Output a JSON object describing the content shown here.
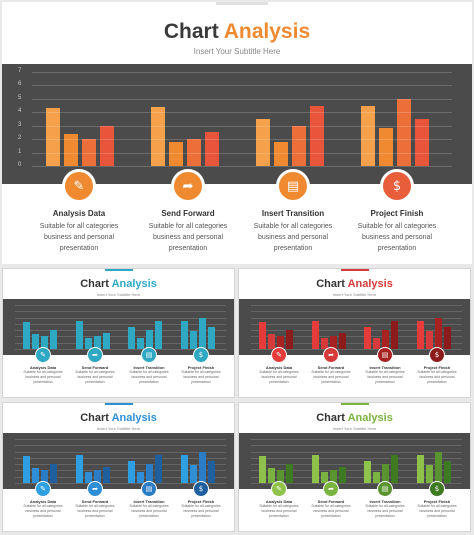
{
  "main": {
    "title_word1": "Chart",
    "title_word2": "Analysis",
    "subtitle": "Insert Your Subtitle Here",
    "accent": "#f08a30",
    "ytick_labels": [
      "7",
      "6",
      "5",
      "4",
      "3",
      "2",
      "1",
      "0"
    ],
    "features": [
      {
        "name": "Analysis Data",
        "desc": "Suitable for all categories business and personal presentation",
        "icon": "pencil-note-icon",
        "glyph": "✎",
        "color": "#f08a30"
      },
      {
        "name": "Send Forward",
        "desc": "Suitable for all categories business and personal presentation",
        "icon": "share-arrow-icon",
        "glyph": "➦",
        "color": "#f08a30"
      },
      {
        "name": "Insert Transition",
        "desc": "Suitable for all categories business and personal presentation",
        "icon": "slides-icon",
        "glyph": "▤",
        "color": "#f08a30"
      },
      {
        "name": "Project Finish",
        "desc": "Suitable for all categories business and personal presentation",
        "icon": "money-bag-icon",
        "glyph": "$",
        "color": "#e85d3a"
      }
    ]
  },
  "thumbnails": [
    {
      "title_word1": "Chart",
      "title_word2": "Analysis",
      "subtitle": "Insert Your Subtitle Here",
      "accent": "#2fa8c4",
      "palette": [
        "#2fa8c4",
        "#2fa8c4",
        "#2fa8c4",
        "#2fa8c4"
      ],
      "features": [
        "Analysis Data",
        "Send Forward",
        "Insert Transition",
        "Project Finish"
      ],
      "desc": "Suitable for all categories business and personal presentation"
    },
    {
      "title_word1": "Chart",
      "title_word2": "Analysis",
      "subtitle": "Insert Your Subtitle Here",
      "accent": "#d63a3a",
      "palette": [
        "#e53b3b",
        "#d63a3a",
        "#a82222",
        "#8c1b1b"
      ],
      "features": [
        "Analysis Data",
        "Send Forward",
        "Insert Transition",
        "Project Finish"
      ],
      "desc": "Suitable for all categories business and personal presentation"
    },
    {
      "title_word1": "Chart",
      "title_word2": "Analysis",
      "subtitle": "Insert Your Subtitle Here",
      "accent": "#2e8fd6",
      "palette": [
        "#2e9fe0",
        "#2e8fd6",
        "#2a7cc4",
        "#1f5f9e"
      ],
      "features": [
        "Analysis Data",
        "Send Forward",
        "Insert Transition",
        "Project Finish"
      ],
      "desc": "Suitable for all categories business and personal presentation"
    },
    {
      "title_word1": "Chart",
      "title_word2": "Analysis",
      "subtitle": "Insert Your Subtitle Here",
      "accent": "#7ab340",
      "palette": [
        "#8fc24a",
        "#7ab340",
        "#5a9430",
        "#3e7a22"
      ],
      "features": [
        "Analysis Data",
        "Send Forward",
        "Insert Transition",
        "Project Finish"
      ],
      "desc": "Suitable for all categories business and personal presentation"
    }
  ],
  "chart_data": {
    "type": "bar",
    "title": "",
    "ylim": [
      0,
      7
    ],
    "groups": 4,
    "series": [
      {
        "values": [
          4.3,
          4.4,
          3.5,
          4.5
        ],
        "color": "#f5a04a"
      },
      {
        "values": [
          2.4,
          1.8,
          1.8,
          2.8
        ],
        "color": "#f08a30"
      },
      {
        "values": [
          2.0,
          2.0,
          3.0,
          5.0
        ],
        "color": "#ec6f3a"
      },
      {
        "values": [
          3.0,
          2.5,
          4.5,
          3.5
        ],
        "color": "#e8553a"
      }
    ]
  }
}
